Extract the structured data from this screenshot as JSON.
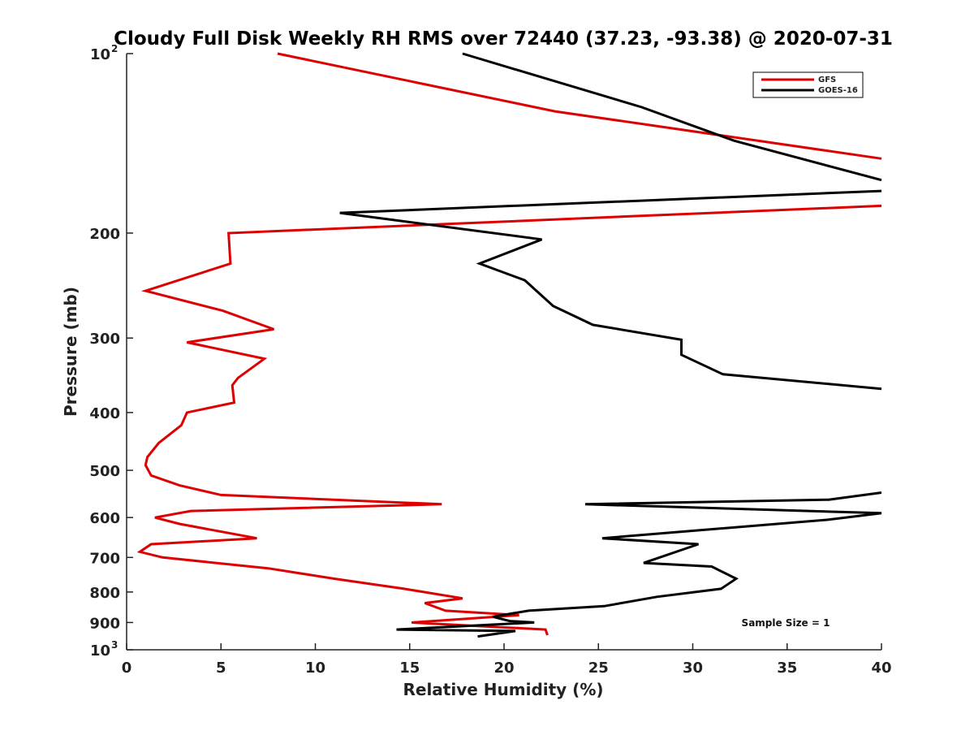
{
  "chart_data": {
    "type": "line",
    "title": "Cloudy Full Disk Weekly RH RMS over 72440 (37.23, -93.38) @ 2020-07-31",
    "xlabel": "Relative Humidity (%)",
    "ylabel": "Pressure (mb)",
    "xlim": [
      0,
      40
    ],
    "ylim": [
      100,
      1000
    ],
    "y_scale": "log",
    "y_reversed": true,
    "grid": false,
    "legend_position": "top-right",
    "x_ticks": [
      "0",
      "5",
      "10",
      "15",
      "20",
      "25",
      "30",
      "35",
      "40"
    ],
    "y_ticks": [
      {
        "value": 100,
        "base": "10",
        "exp": "2"
      },
      {
        "value": 200,
        "label": "200"
      },
      {
        "value": 300,
        "label": "300"
      },
      {
        "value": 400,
        "label": "400"
      },
      {
        "value": 500,
        "label": "500"
      },
      {
        "value": 600,
        "label": "600"
      },
      {
        "value": 700,
        "label": "700"
      },
      {
        "value": 800,
        "label": "800"
      },
      {
        "value": 900,
        "label": "900"
      },
      {
        "value": 1000,
        "base": "10",
        "exp": "3"
      }
    ],
    "annotation": "Sample Size = 1",
    "series": [
      {
        "name": "GFS",
        "color": "#dd0000",
        "points": [
          [
            8.0,
            100
          ],
          [
            22.7,
            125
          ],
          [
            40,
            150
          ],
          null,
          [
            40,
            180
          ],
          [
            5.4,
            200
          ],
          [
            5.5,
            225
          ],
          [
            1.0,
            250
          ],
          [
            5.1,
            270
          ],
          [
            7.8,
            290
          ],
          [
            3.2,
            305
          ],
          [
            7.3,
            325
          ],
          [
            5.9,
            350
          ],
          [
            5.6,
            360
          ],
          [
            5.7,
            385
          ],
          [
            3.2,
            400
          ],
          [
            2.9,
            420
          ],
          [
            1.7,
            450
          ],
          [
            1.1,
            475
          ],
          [
            1.0,
            490
          ],
          [
            1.3,
            510
          ],
          [
            2.8,
            530
          ],
          [
            5.0,
            550
          ],
          [
            16.7,
            570
          ],
          [
            3.4,
            585
          ],
          [
            1.5,
            600
          ],
          [
            2.8,
            615
          ],
          [
            6.9,
            650
          ],
          [
            1.3,
            665
          ],
          [
            0.7,
            685
          ],
          [
            1.9,
            700
          ],
          [
            7.5,
            730
          ],
          [
            11.0,
            760
          ],
          [
            14.7,
            790
          ],
          [
            17.8,
            820
          ],
          [
            15.8,
            835
          ],
          [
            16.9,
            860
          ],
          [
            20.8,
            875
          ],
          [
            15.1,
            900
          ],
          [
            22.2,
            925
          ],
          [
            22.3,
            945
          ]
        ]
      },
      {
        "name": "GOES-16",
        "color": "#000000",
        "points": [
          [
            17.8,
            100
          ],
          [
            27.3,
            123
          ],
          [
            32.2,
            140
          ],
          [
            40,
            163
          ],
          null,
          [
            40,
            170
          ],
          [
            11.3,
            185
          ],
          [
            22.0,
            205
          ],
          [
            18.7,
            225
          ],
          [
            21.1,
            240
          ],
          [
            22.6,
            265
          ],
          [
            24.7,
            285
          ],
          [
            29.4,
            302
          ],
          [
            29.4,
            320
          ],
          [
            31.6,
            345
          ],
          [
            40,
            365
          ],
          null,
          [
            40,
            545
          ],
          [
            37.2,
            560
          ],
          [
            24.3,
            570
          ],
          [
            40,
            590
          ],
          [
            37.2,
            605
          ],
          [
            25.2,
            650
          ],
          [
            30.3,
            665
          ],
          [
            27.4,
            715
          ],
          [
            31.0,
            725
          ],
          [
            32.3,
            760
          ],
          [
            31.5,
            790
          ],
          [
            28.1,
            815
          ],
          [
            25.3,
            845
          ],
          [
            21.3,
            860
          ],
          [
            19.4,
            880
          ],
          [
            20.3,
            895
          ],
          [
            21.6,
            900
          ],
          [
            14.3,
            925
          ],
          [
            20.6,
            930
          ],
          [
            18.6,
            950
          ]
        ]
      }
    ]
  }
}
